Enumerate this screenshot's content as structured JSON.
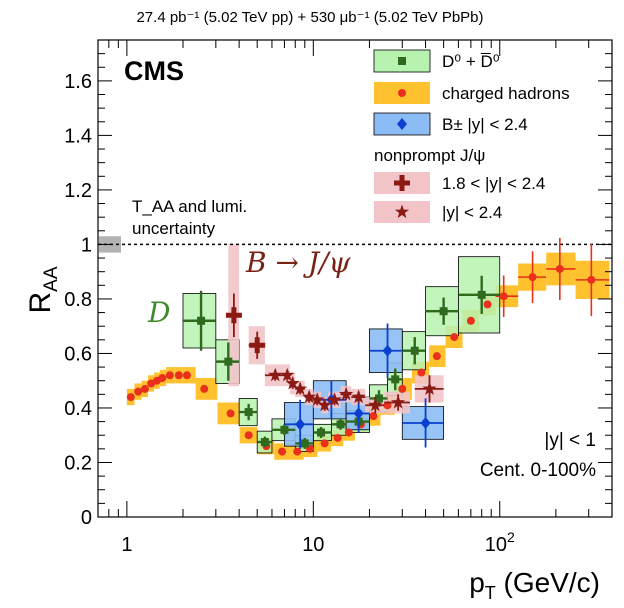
{
  "chart_data": {
    "type": "scatter",
    "header": "27.4 pb⁻¹ (5.02 TeV pp) + 530 μb⁻¹ (5.02 TeV PbPb)",
    "experiment": "CMS",
    "xlabel": "p_T (GeV/c)",
    "ylabel": "R_AA",
    "xscale": "log",
    "xlim": [
      0.7,
      400
    ],
    "ylim": [
      0,
      1.75
    ],
    "yticks": [
      0,
      0.2,
      0.4,
      0.6,
      0.8,
      1,
      1.2,
      1.4,
      1.6
    ],
    "ytick_labels": [
      "0",
      "0.2",
      "0.4",
      "0.6",
      "0.8",
      "1",
      "1.2",
      "1.4",
      "1.6"
    ],
    "xtick_labels": [
      "1",
      "10",
      "10²"
    ],
    "reference_line": 1.0,
    "norm_uncertainty": {
      "label_line1": "T_AA and lumi.",
      "label_line2": "uncertainty",
      "center": 1.0,
      "half_height": 0.03,
      "color": "#b3b3b3"
    },
    "annotations": {
      "selection": "|y| < 1",
      "centrality": "Cent. 0-100%",
      "d_label": "D",
      "b_label": "B → J/ψ"
    },
    "legend": {
      "position": "top-right",
      "entries": [
        {
          "id": "d0",
          "label": "D⁰ + D̅⁰",
          "marker": "square",
          "color": "#2e6b1e",
          "fill": "#b8f2b0"
        },
        {
          "id": "ch",
          "label": "charged hadrons",
          "marker": "circle",
          "color": "#e8301c",
          "fill": "#ffc22e"
        },
        {
          "id": "bpm",
          "label": "B± |y| < 2.4",
          "marker": "diamond",
          "color": "#0a3fd0",
          "fill": "#8cbcf5"
        },
        {
          "id": "npheader",
          "label": "nonprompt J/ψ",
          "header": true
        },
        {
          "id": "jpsi_fwd",
          "label": "1.8 < |y| < 2.4",
          "marker": "cross",
          "color": "#8b1a14",
          "fill": "#f2c4c8"
        },
        {
          "id": "jpsi_all",
          "label": "|y| < 2.4",
          "marker": "star",
          "color": "#8b1a14",
          "fill": "#f2c4c8"
        }
      ]
    },
    "series": [
      {
        "name": "charged hadrons",
        "color": "#e8301c",
        "band_color": "#ffc22e",
        "marker": "circle",
        "points": [
          {
            "x": 1.05,
            "y": 0.44,
            "sys": 0.03
          },
          {
            "x": 1.15,
            "y": 0.46,
            "sys": 0.03
          },
          {
            "x": 1.25,
            "y": 0.47,
            "sys": 0.03
          },
          {
            "x": 1.35,
            "y": 0.49,
            "sys": 0.03
          },
          {
            "x": 1.45,
            "y": 0.5,
            "sys": 0.03
          },
          {
            "x": 1.55,
            "y": 0.51,
            "sys": 0.03
          },
          {
            "x": 1.7,
            "y": 0.52,
            "sys": 0.03
          },
          {
            "x": 1.9,
            "y": 0.52,
            "sys": 0.03
          },
          {
            "x": 2.1,
            "y": 0.52,
            "sys": 0.03
          },
          {
            "x": 2.6,
            "y": 0.47,
            "sys": 0.04
          },
          {
            "x": 3.6,
            "y": 0.38,
            "sys": 0.04
          },
          {
            "x": 4.5,
            "y": 0.3,
            "sys": 0.03
          },
          {
            "x": 5.6,
            "y": 0.26,
            "sys": 0.03
          },
          {
            "x": 6.8,
            "y": 0.24,
            "sys": 0.03
          },
          {
            "x": 8.2,
            "y": 0.24,
            "sys": 0.03
          },
          {
            "x": 9.6,
            "y": 0.25,
            "sys": 0.03
          },
          {
            "x": 11.5,
            "y": 0.27,
            "sys": 0.03
          },
          {
            "x": 13.5,
            "y": 0.29,
            "sys": 0.03
          },
          {
            "x": 15.5,
            "y": 0.31,
            "sys": 0.03
          },
          {
            "x": 18.0,
            "y": 0.34,
            "sys": 0.03
          },
          {
            "x": 21.0,
            "y": 0.37,
            "sys": 0.035
          },
          {
            "x": 25.0,
            "y": 0.41,
            "sys": 0.035
          },
          {
            "x": 30.0,
            "y": 0.47,
            "sys": 0.04
          },
          {
            "x": 38.0,
            "y": 0.53,
            "sys": 0.04
          },
          {
            "x": 46.0,
            "y": 0.59,
            "sys": 0.04
          },
          {
            "x": 57.0,
            "y": 0.66,
            "sys": 0.04
          },
          {
            "x": 70.0,
            "y": 0.72,
            "sys": 0.04
          },
          {
            "x": 86.0,
            "y": 0.78,
            "sys": 0.04
          },
          {
            "x": 105.0,
            "y": 0.81,
            "sys": 0.04
          },
          {
            "x": 150.0,
            "y": 0.88,
            "sys": 0.05
          },
          {
            "x": 210.0,
            "y": 0.91,
            "sys": 0.06
          },
          {
            "x": 310.0,
            "y": 0.87,
            "sys": 0.07
          }
        ]
      },
      {
        "name": "D0 + D0bar",
        "color": "#2e6b1e",
        "band_color": "#b8f2b0",
        "marker": "square",
        "points": [
          {
            "x": 2.5,
            "xlo": 2.0,
            "xhi": 3.0,
            "y": 0.72,
            "stat": 0.11,
            "sys": 0.1
          },
          {
            "x": 3.5,
            "xlo": 3.0,
            "xhi": 4.0,
            "y": 0.57,
            "stat": 0.07,
            "sys": 0.08
          },
          {
            "x": 4.5,
            "xlo": 4.0,
            "xhi": 5.0,
            "y": 0.385,
            "stat": 0.03,
            "sys": 0.05
          },
          {
            "x": 5.5,
            "xlo": 5.0,
            "xhi": 6.0,
            "y": 0.275,
            "stat": 0.02,
            "sys": 0.04
          },
          {
            "x": 7.0,
            "xlo": 6.0,
            "xhi": 8.0,
            "y": 0.32,
            "stat": 0.02,
            "sys": 0.04
          },
          {
            "x": 9.0,
            "xlo": 8.0,
            "xhi": 10.0,
            "y": 0.27,
            "stat": 0.02,
            "sys": 0.03
          },
          {
            "x": 11.0,
            "xlo": 10.0,
            "xhi": 12.5,
            "y": 0.31,
            "stat": 0.02,
            "sys": 0.03
          },
          {
            "x": 14.0,
            "xlo": 12.5,
            "xhi": 15.0,
            "y": 0.34,
            "stat": 0.02,
            "sys": 0.04
          },
          {
            "x": 17.5,
            "xlo": 15.0,
            "xhi": 20.0,
            "y": 0.35,
            "stat": 0.025,
            "sys": 0.04
          },
          {
            "x": 22.5,
            "xlo": 20.0,
            "xhi": 25.0,
            "y": 0.435,
            "stat": 0.03,
            "sys": 0.05
          },
          {
            "x": 27.5,
            "xlo": 25.0,
            "xhi": 30.0,
            "y": 0.505,
            "stat": 0.04,
            "sys": 0.06
          },
          {
            "x": 35.0,
            "xlo": 30.0,
            "xhi": 40.0,
            "y": 0.61,
            "stat": 0.05,
            "sys": 0.07
          },
          {
            "x": 50.0,
            "xlo": 40.0,
            "xhi": 60.0,
            "y": 0.755,
            "stat": 0.05,
            "sys": 0.09
          },
          {
            "x": 80.0,
            "xlo": 60.0,
            "xhi": 100.0,
            "y": 0.815,
            "stat": 0.07,
            "sys": 0.14
          }
        ]
      },
      {
        "name": "B± |y| < 2.4",
        "color": "#0a3fd0",
        "band_color": "#8cbcf5",
        "marker": "diamond",
        "points": [
          {
            "x": 8.5,
            "xlo": 7.0,
            "xhi": 10.0,
            "y": 0.34,
            "stat": 0.09,
            "sys": 0.08
          },
          {
            "x": 12.5,
            "xlo": 10.0,
            "xhi": 15.0,
            "y": 0.43,
            "stat": 0.07,
            "sys": 0.07
          },
          {
            "x": 17.5,
            "xlo": 15.0,
            "xhi": 20.0,
            "y": 0.38,
            "stat": 0.07,
            "sys": 0.06
          },
          {
            "x": 25.0,
            "xlo": 20.0,
            "xhi": 30.0,
            "y": 0.61,
            "stat": 0.1,
            "sys": 0.08
          },
          {
            "x": 40.0,
            "xlo": 30.0,
            "xhi": 50.0,
            "y": 0.345,
            "stat": 0.09,
            "sys": 0.06
          }
        ]
      },
      {
        "name": "nonprompt J/ψ 1.8 < |y| < 2.4",
        "color": "#8b1a14",
        "band_color": "#f2c4c8",
        "marker": "cross",
        "points": [
          {
            "x": 3.75,
            "xlo": 3.5,
            "xhi": 4.0,
            "y": 0.74,
            "stat": 0.08,
            "sys": 0.26
          },
          {
            "x": 5.0,
            "xlo": 4.5,
            "xhi": 5.5,
            "y": 0.63,
            "stat": 0.05,
            "sys": 0.07
          }
        ]
      },
      {
        "name": "nonprompt J/ψ |y| < 2.4",
        "color": "#8b1a14",
        "band_color": "#f2c4c8",
        "marker": "star",
        "points": [
          {
            "x": 6.25,
            "xlo": 5.5,
            "xhi": 7.0,
            "y": 0.52,
            "stat": 0.02,
            "sys": 0.04
          },
          {
            "x": 7.25,
            "xlo": 7.0,
            "xhi": 7.5,
            "y": 0.52,
            "stat": 0.02,
            "sys": 0.04
          },
          {
            "x": 7.75,
            "xlo": 7.5,
            "xhi": 8.0,
            "y": 0.49,
            "stat": 0.02,
            "sys": 0.04
          },
          {
            "x": 8.5,
            "xlo": 8.0,
            "xhi": 9.0,
            "y": 0.47,
            "stat": 0.02,
            "sys": 0.03
          },
          {
            "x": 9.5,
            "xlo": 9.0,
            "xhi": 10.0,
            "y": 0.44,
            "stat": 0.02,
            "sys": 0.03
          },
          {
            "x": 10.5,
            "xlo": 10.0,
            "xhi": 11.0,
            "y": 0.43,
            "stat": 0.02,
            "sys": 0.03
          },
          {
            "x": 11.5,
            "xlo": 11.0,
            "xhi": 12.0,
            "y": 0.41,
            "stat": 0.02,
            "sys": 0.03
          },
          {
            "x": 13.0,
            "xlo": 12.0,
            "xhi": 14.0,
            "y": 0.43,
            "stat": 0.02,
            "sys": 0.03
          },
          {
            "x": 15.0,
            "xlo": 14.0,
            "xhi": 16.0,
            "y": 0.45,
            "stat": 0.02,
            "sys": 0.03
          },
          {
            "x": 17.5,
            "xlo": 16.0,
            "xhi": 19.0,
            "y": 0.44,
            "stat": 0.02,
            "sys": 0.03
          },
          {
            "x": 21.5,
            "xlo": 19.0,
            "xhi": 24.0,
            "y": 0.41,
            "stat": 0.03,
            "sys": 0.03
          },
          {
            "x": 28.5,
            "xlo": 24.0,
            "xhi": 33.0,
            "y": 0.42,
            "stat": 0.03,
            "sys": 0.04
          },
          {
            "x": 42.0,
            "xlo": 35.0,
            "xhi": 50.0,
            "y": 0.47,
            "stat": 0.05,
            "sys": 0.05
          }
        ]
      }
    ]
  }
}
